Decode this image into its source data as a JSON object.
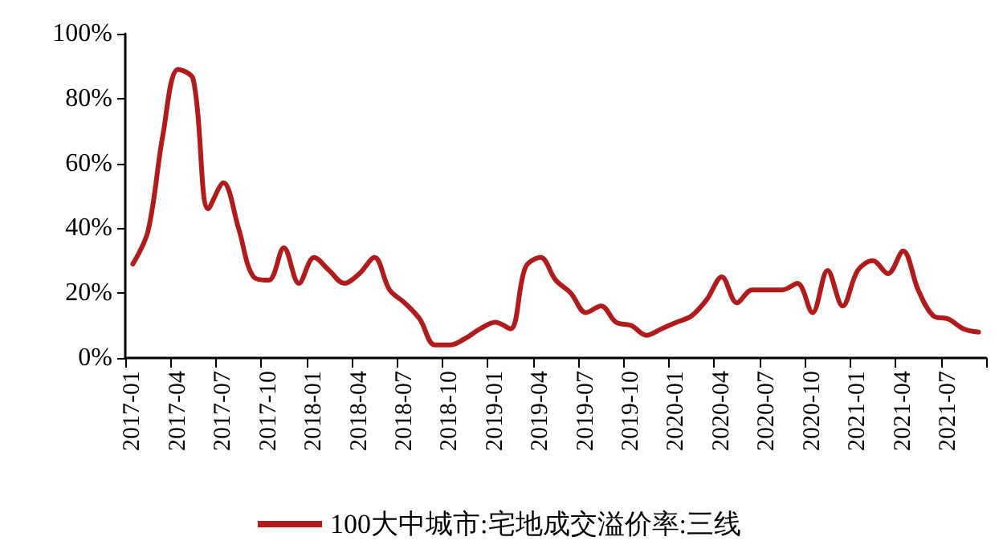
{
  "chart_data": {
    "type": "line",
    "categories": [
      "2017-01",
      null,
      null,
      "2017-04",
      null,
      null,
      "2017-07",
      null,
      null,
      "2017-10",
      null,
      null,
      "2018-01",
      null,
      null,
      "2018-04",
      null,
      null,
      "2018-07",
      null,
      null,
      "2018-10",
      null,
      null,
      "2019-01",
      null,
      null,
      "2019-04",
      null,
      null,
      "2019-07",
      null,
      null,
      "2019-10",
      null,
      null,
      "2020-01",
      null,
      null,
      "2020-04",
      null,
      null,
      "2020-07",
      null,
      null,
      "2020-10",
      null,
      null,
      "2021-01",
      null,
      null,
      "2021-04",
      null,
      null,
      "2021-07",
      null,
      null
    ],
    "series": [
      {
        "name": "100大中城市:宅地成交溢价率:三线",
        "color": "#b01c1c",
        "values": [
          29,
          39,
          69,
          89,
          86,
          46,
          54,
          40,
          25,
          24,
          34,
          23,
          31,
          27,
          23,
          26,
          31,
          21,
          17,
          12,
          4,
          4,
          6,
          9,
          11,
          9,
          28,
          31,
          24,
          20,
          14,
          16,
          11,
          10,
          7,
          9,
          11,
          13,
          18,
          25,
          17,
          21,
          21,
          21,
          23,
          14,
          27,
          16,
          27,
          30,
          26,
          33,
          21,
          13,
          12,
          9,
          8
        ]
      }
    ],
    "ylim": [
      0,
      100
    ],
    "yticks": [
      {
        "value": 0,
        "label": "0%"
      },
      {
        "value": 20,
        "label": "20%"
      },
      {
        "value": 40,
        "label": "40%"
      },
      {
        "value": 60,
        "label": "60%"
      },
      {
        "value": 80,
        "label": "80%"
      },
      {
        "value": 100,
        "label": "100%"
      }
    ],
    "grid": false,
    "legend": "bottom",
    "marker": "none",
    "line_style": "solid"
  }
}
